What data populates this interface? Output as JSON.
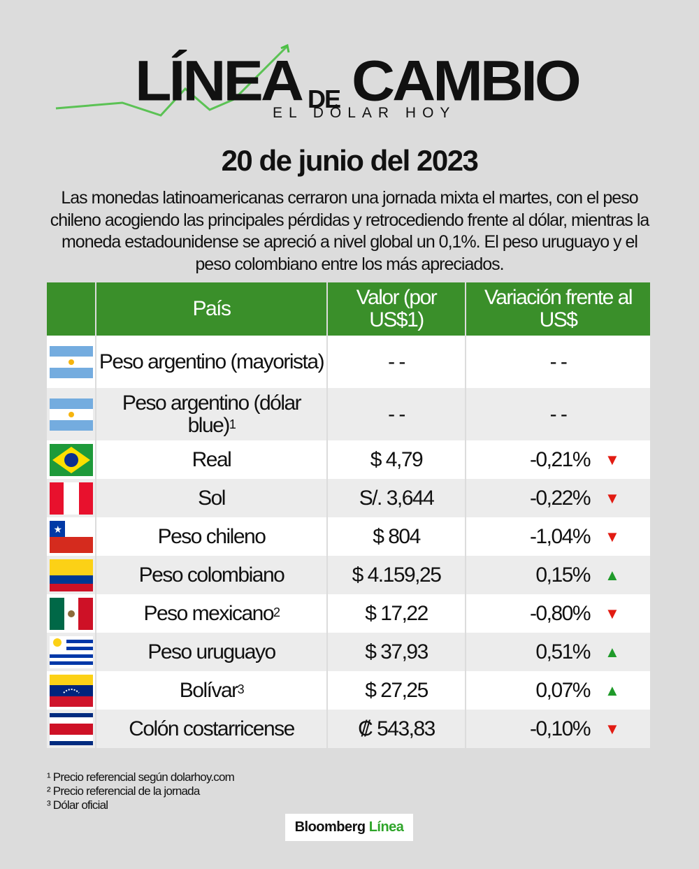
{
  "header": {
    "logo_word1": "LÍNEA",
    "logo_de": "DE",
    "logo_word2": "CAMBIO",
    "logo_sub": "EL DÓLAR HOY"
  },
  "date": "20 de junio del 2023",
  "intro": "Las monedas latinoamericanas cerraron una jornada mixta el martes, con el peso chileno acogiendo las principales pérdidas y retrocediendo frente al dólar, mientras la moneda estadounidense se apreció a nivel global un 0,1%. El peso uruguayo y el peso colombiano entre los más apreciados.",
  "colors": {
    "header_green": "#3a8f2a",
    "up": "#1f9a2a",
    "down": "#e21b12"
  },
  "table": {
    "headers": [
      "País",
      "Valor (por US$1)",
      "Variación frente al US$"
    ],
    "rows": [
      {
        "flag": "argentina-flag",
        "country": "Peso argentino (mayorista)",
        "sup": "",
        "value": "- -",
        "variation": "- -",
        "direction": ""
      },
      {
        "flag": "argentina-flag",
        "country": "Peso argentino (dólar blue)",
        "sup": "1",
        "value": "- -",
        "variation": "- -",
        "direction": ""
      },
      {
        "flag": "brazil-flag",
        "country": "Real",
        "sup": "",
        "value": "$ 4,79",
        "variation": "-0,21%",
        "direction": "down"
      },
      {
        "flag": "peru-flag",
        "country": "Sol",
        "sup": "",
        "value": "S/. 3,644",
        "variation": "-0,22%",
        "direction": "down"
      },
      {
        "flag": "chile-flag",
        "country": "Peso chileno",
        "sup": "",
        "value": "$ 804",
        "variation": "-1,04%",
        "direction": "down"
      },
      {
        "flag": "colombia-flag",
        "country": "Peso colombiano",
        "sup": "",
        "value": "$ 4.159,25",
        "variation": "0,15%",
        "direction": "up"
      },
      {
        "flag": "mexico-flag",
        "country": "Peso mexicano",
        "sup": "2",
        "value": "$ 17,22",
        "variation": "-0,80%",
        "direction": "down"
      },
      {
        "flag": "uruguay-flag",
        "country": "Peso uruguayo",
        "sup": "",
        "value": "$ 37,93",
        "variation": "0,51%",
        "direction": "up"
      },
      {
        "flag": "venezuela-flag",
        "country": "Bolívar",
        "sup": "3",
        "value": "$ 27,25",
        "variation": "0,07%",
        "direction": "up"
      },
      {
        "flag": "costa-rica-flag",
        "country": "Colón costarricense",
        "sup": "",
        "value": "₡ 543,83",
        "variation": "-0,10%",
        "direction": "down"
      }
    ]
  },
  "footnotes": [
    "¹ Precio referencial según dolarhoy.com",
    "² Precio referencial de la jornada",
    "³ Dólar oficial"
  ],
  "brand": {
    "name": "Bloomberg",
    "accent": "Línea"
  }
}
